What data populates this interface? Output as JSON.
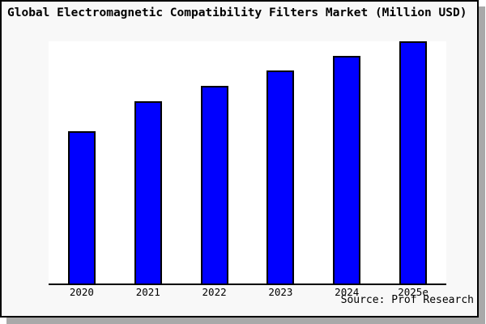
{
  "title": "Global Electromagnetic Compatibility Filters Market (Million USD)",
  "source": "Source: Prof Research",
  "colors": {
    "bar_fill": "#0000ff",
    "bar_border": "#000000",
    "frame_background": "#f8f8f8",
    "plot_background": "#ffffff",
    "axis": "#000000",
    "shadow": "#a9a9a9",
    "title_text": "#000000"
  },
  "chart_data": {
    "type": "bar",
    "title": "Global Electromagnetic Compatibility Filters Market (Million USD)",
    "categories": [
      "2020",
      "2021",
      "2022",
      "2023",
      "2024",
      "2025e"
    ],
    "values": [
      62.9,
      75.3,
      81.6,
      87.9,
      94.0,
      100.0
    ],
    "value_unit": "relative (percent of 2025e bar, no y-axis labels shown)",
    "xlabel": "",
    "ylabel": "",
    "ylim": [
      0,
      100
    ],
    "y_axis_visible": false,
    "grid": false,
    "legend": "none",
    "annotations": [
      "Source: Prof Research"
    ]
  }
}
